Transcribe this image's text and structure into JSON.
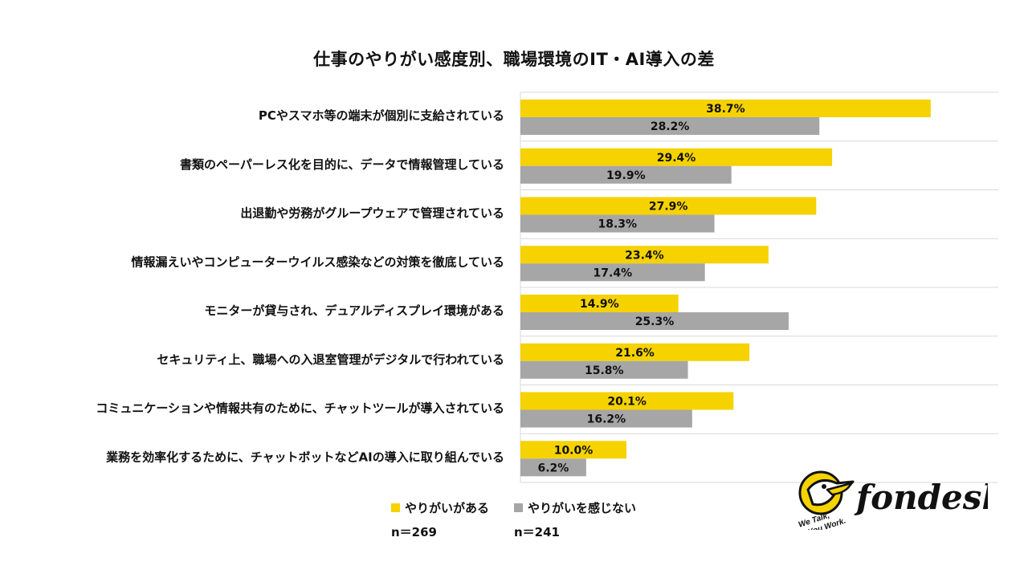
{
  "chart_data": {
    "type": "bar",
    "orientation": "horizontal",
    "title": "仕事のやりがい感度別、職場環境のIT・AI導入の差",
    "categories": [
      "PCやスマホ等の端末が個別に支給されている",
      "書類のペーパーレス化を目的に、データで情報管理している",
      "出退勤や労務がグループウェアで管理されている",
      "情報漏えいやコンピューターウイルス感染などの対策を徹底している",
      "モニターが貸与され、デュアルディスプレイ環境がある",
      "セキュリティ上、職場への入退室管理がデジタルで行われている",
      "コミュニケーションや情報共有のために、チャットツールが導入されている",
      "業務を効率化するために、チャットボットなどAIの導入に取り組んでいる"
    ],
    "series": [
      {
        "name": "やりがいがある",
        "color": "#f5d200",
        "values": [
          38.7,
          29.4,
          27.9,
          23.4,
          14.9,
          21.6,
          20.1,
          10.0
        ],
        "labels": [
          "38.7%",
          "29.4%",
          "27.9%",
          "23.4%",
          "14.9%",
          "21.6%",
          "20.1%",
          "10.0%"
        ],
        "n_label": "n＝269"
      },
      {
        "name": "やりがいを感じない",
        "color": "#a6a6a6",
        "values": [
          28.2,
          19.9,
          18.3,
          17.4,
          25.3,
          15.8,
          16.2,
          6.2
        ],
        "labels": [
          "28.2%",
          "19.9%",
          "18.3%",
          "17.4%",
          "25.3%",
          "15.8%",
          "16.2%",
          "6.2%"
        ],
        "n_label": "n＝241"
      }
    ],
    "xlabel": "",
    "ylabel": "",
    "xlim": [
      0,
      45
    ],
    "grid": "horizontal separators between categories",
    "legend": "bottom"
  },
  "logo": {
    "brand": "fondesk",
    "tagline_1": "We Talk,",
    "tagline_2": "You Work."
  }
}
